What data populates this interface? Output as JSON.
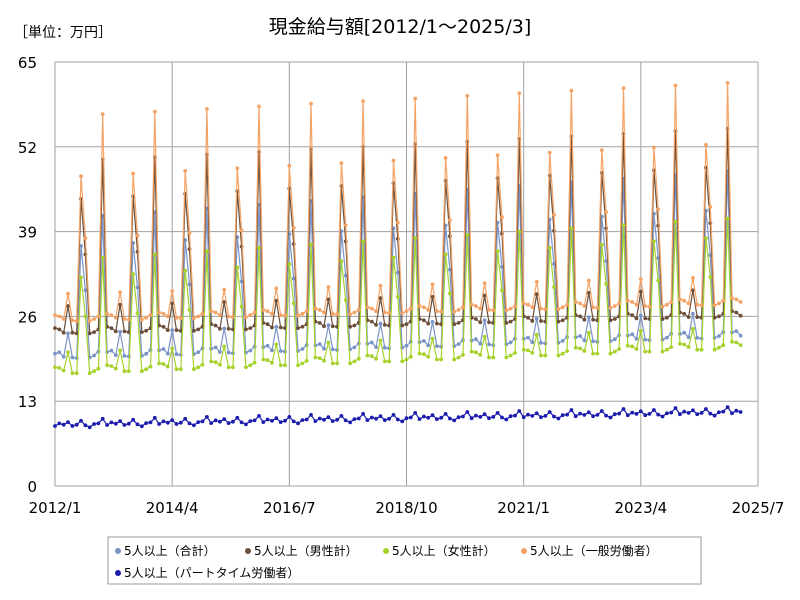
{
  "chart_data": {
    "type": "line",
    "title": "現金給与額[2012/1～2025/3]",
    "unit_label": "［単位：万円］",
    "ylim": [
      0,
      65
    ],
    "y_ticks": [
      "0",
      "13",
      "26",
      "39",
      "52",
      "65"
    ],
    "x_range": [
      "2012-01",
      "2025-07"
    ],
    "x_ticks": [
      "2012/1",
      "2014/4",
      "2016/7",
      "2018/10",
      "2021/1",
      "2023/4",
      "2025/7"
    ],
    "grid": true,
    "legend_position": "bottom",
    "series": [
      {
        "name": "5人以上（合計）",
        "color": "#7a94c8",
        "pattern": {
          "base": [
            20.3,
            20.5,
            19.8,
            23.4,
            19.7,
            19.6,
            36.8,
            30.0,
            19.7,
            20.0,
            20.6,
            41.4
          ],
          "growth_per_year": 0.25,
          "summer_growth": 0.05,
          "winter_growth": 0.08
        }
      },
      {
        "name": "5人以上（男性計）",
        "color": "#6b4f3a",
        "pattern": {
          "base": [
            24.2,
            24.0,
            23.5,
            27.6,
            23.5,
            23.4,
            44.0,
            35.5,
            23.4,
            23.6,
            24.0,
            50.0
          ],
          "growth_per_year": 0.2,
          "summer_growth": 0.05,
          "winter_growth": 0.05
        }
      },
      {
        "name": "5人以上（女性計）",
        "color": "#a6d22c",
        "pattern": {
          "base": [
            18.2,
            18.1,
            17.7,
            20.5,
            17.3,
            17.3,
            32.0,
            26.0,
            17.3,
            17.6,
            18.0,
            35.0
          ],
          "growth_per_year": 0.3,
          "summer_growth": 0.05,
          "winter_growth": 0.05
        }
      },
      {
        "name": "5人以上（一般労働者）",
        "color": "#f4a366",
        "pattern": {
          "base": [
            26.2,
            26.0,
            25.6,
            29.5,
            25.4,
            25.3,
            47.5,
            38.0,
            25.3,
            25.6,
            26.0,
            57.0
          ],
          "growth_per_year": 0.2,
          "summer_growth": 0.05,
          "winter_growth": 0.05
        }
      },
      {
        "name": "5人以上（パートタイム労働者）",
        "color": "#1c1cae",
        "pattern": {
          "base": [
            9.2,
            9.6,
            9.4,
            9.8,
            9.2,
            9.4,
            10.0,
            9.3,
            9.0,
            9.5,
            9.6,
            10.3
          ],
          "growth_per_year": 0.15,
          "summer_growth": 0,
          "winter_growth": 0
        }
      }
    ]
  }
}
